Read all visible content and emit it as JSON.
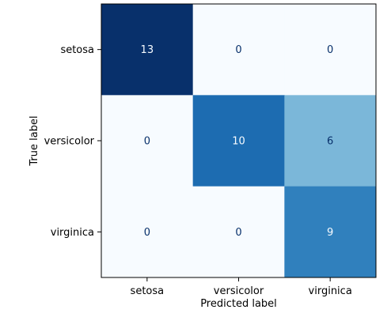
{
  "chart_data": {
    "type": "heatmap",
    "title": "",
    "xlabel": "Predicted label",
    "ylabel": "True label",
    "x_categories": [
      "setosa",
      "versicolor",
      "virginica"
    ],
    "y_categories": [
      "setosa",
      "versicolor",
      "virginica"
    ],
    "values": [
      [
        13,
        0,
        0
      ],
      [
        0,
        10,
        6
      ],
      [
        0,
        0,
        9
      ]
    ],
    "colormap": "Blues",
    "vmin": 0,
    "vmax": 13,
    "colorbar": false,
    "grid": false
  }
}
